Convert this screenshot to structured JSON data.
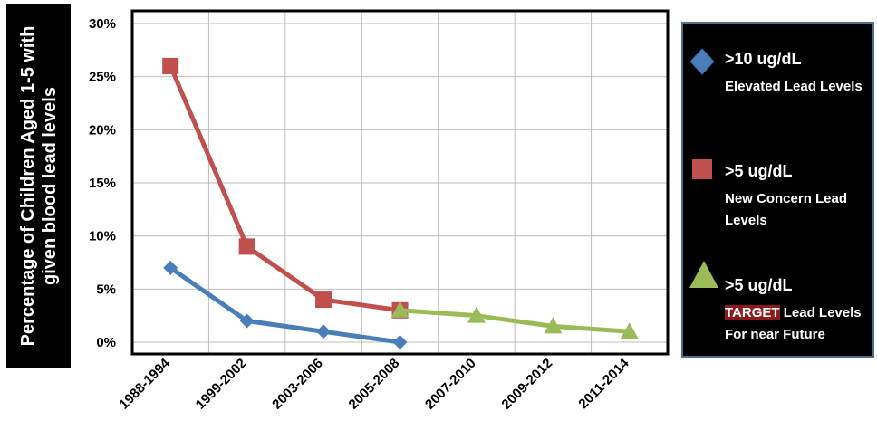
{
  "chart_data": {
    "type": "line",
    "ylabel": "Percentage of Children Aged  1-5 with\ngiven blood lead levels",
    "xlabel": "",
    "categories": [
      "1988-1994",
      "1999-2002",
      "2003-2006",
      "2005-2008",
      "2007-2010",
      "2009-2012",
      "2011-2014"
    ],
    "y_ticks": [
      "0%",
      "5%",
      "10%",
      "15%",
      "20%",
      "25%",
      "30%"
    ],
    "ylim": [
      0,
      30
    ],
    "grid": true,
    "legend_position": "right",
    "series": [
      {
        "name": ">10 ug/dL",
        "description": "Elevated Lead Levels",
        "color": "#4a7ebb",
        "marker": "diamond",
        "values": [
          7,
          2,
          1,
          0,
          null,
          null,
          null
        ]
      },
      {
        "name": ">5 ug/dL",
        "description": "New Concern Lead Levels",
        "color": "#c0504d",
        "marker": "square",
        "values": [
          26,
          9,
          4,
          3,
          null,
          null,
          null
        ]
      },
      {
        "name": ">5 ug/dL",
        "description_highlight": "TARGET",
        "description_rest": " Lead Levels For near Future",
        "color": "#9bbb59",
        "marker": "triangle",
        "values": [
          null,
          null,
          null,
          3,
          2.5,
          1.5,
          1
        ]
      }
    ]
  }
}
